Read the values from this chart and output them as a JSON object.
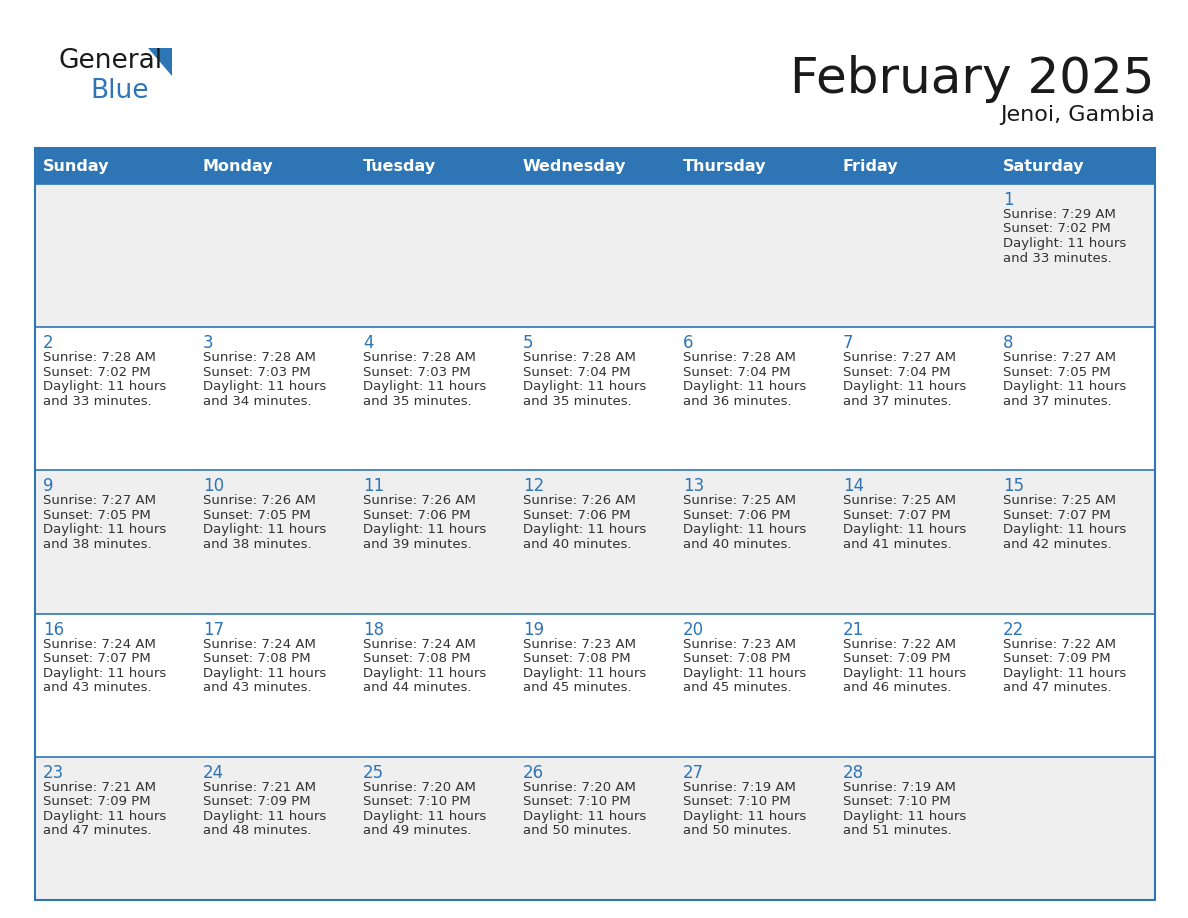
{
  "title": "February 2025",
  "subtitle": "Jenoi, Gambia",
  "days_of_week": [
    "Sunday",
    "Monday",
    "Tuesday",
    "Wednesday",
    "Thursday",
    "Friday",
    "Saturday"
  ],
  "header_bg": "#2E75B6",
  "header_text": "#FFFFFF",
  "cell_bg_odd": "#EFEFEF",
  "cell_bg_even": "#FFFFFF",
  "border_color": "#2E75B6",
  "title_color": "#1a1a1a",
  "subtitle_color": "#1a1a1a",
  "day_num_color": "#2E75B6",
  "cell_text_color": "#333333",
  "calendar_data": [
    [
      null,
      null,
      null,
      null,
      null,
      null,
      {
        "day": 1,
        "sunrise": "7:29 AM",
        "sunset": "7:02 PM",
        "daylight": "11 hours and 33 minutes."
      }
    ],
    [
      {
        "day": 2,
        "sunrise": "7:28 AM",
        "sunset": "7:02 PM",
        "daylight": "11 hours and 33 minutes."
      },
      {
        "day": 3,
        "sunrise": "7:28 AM",
        "sunset": "7:03 PM",
        "daylight": "11 hours and 34 minutes."
      },
      {
        "day": 4,
        "sunrise": "7:28 AM",
        "sunset": "7:03 PM",
        "daylight": "11 hours and 35 minutes."
      },
      {
        "day": 5,
        "sunrise": "7:28 AM",
        "sunset": "7:04 PM",
        "daylight": "11 hours and 35 minutes."
      },
      {
        "day": 6,
        "sunrise": "7:28 AM",
        "sunset": "7:04 PM",
        "daylight": "11 hours and 36 minutes."
      },
      {
        "day": 7,
        "sunrise": "7:27 AM",
        "sunset": "7:04 PM",
        "daylight": "11 hours and 37 minutes."
      },
      {
        "day": 8,
        "sunrise": "7:27 AM",
        "sunset": "7:05 PM",
        "daylight": "11 hours and 37 minutes."
      }
    ],
    [
      {
        "day": 9,
        "sunrise": "7:27 AM",
        "sunset": "7:05 PM",
        "daylight": "11 hours and 38 minutes."
      },
      {
        "day": 10,
        "sunrise": "7:26 AM",
        "sunset": "7:05 PM",
        "daylight": "11 hours and 38 minutes."
      },
      {
        "day": 11,
        "sunrise": "7:26 AM",
        "sunset": "7:06 PM",
        "daylight": "11 hours and 39 minutes."
      },
      {
        "day": 12,
        "sunrise": "7:26 AM",
        "sunset": "7:06 PM",
        "daylight": "11 hours and 40 minutes."
      },
      {
        "day": 13,
        "sunrise": "7:25 AM",
        "sunset": "7:06 PM",
        "daylight": "11 hours and 40 minutes."
      },
      {
        "day": 14,
        "sunrise": "7:25 AM",
        "sunset": "7:07 PM",
        "daylight": "11 hours and 41 minutes."
      },
      {
        "day": 15,
        "sunrise": "7:25 AM",
        "sunset": "7:07 PM",
        "daylight": "11 hours and 42 minutes."
      }
    ],
    [
      {
        "day": 16,
        "sunrise": "7:24 AM",
        "sunset": "7:07 PM",
        "daylight": "11 hours and 43 minutes."
      },
      {
        "day": 17,
        "sunrise": "7:24 AM",
        "sunset": "7:08 PM",
        "daylight": "11 hours and 43 minutes."
      },
      {
        "day": 18,
        "sunrise": "7:24 AM",
        "sunset": "7:08 PM",
        "daylight": "11 hours and 44 minutes."
      },
      {
        "day": 19,
        "sunrise": "7:23 AM",
        "sunset": "7:08 PM",
        "daylight": "11 hours and 45 minutes."
      },
      {
        "day": 20,
        "sunrise": "7:23 AM",
        "sunset": "7:08 PM",
        "daylight": "11 hours and 45 minutes."
      },
      {
        "day": 21,
        "sunrise": "7:22 AM",
        "sunset": "7:09 PM",
        "daylight": "11 hours and 46 minutes."
      },
      {
        "day": 22,
        "sunrise": "7:22 AM",
        "sunset": "7:09 PM",
        "daylight": "11 hours and 47 minutes."
      }
    ],
    [
      {
        "day": 23,
        "sunrise": "7:21 AM",
        "sunset": "7:09 PM",
        "daylight": "11 hours and 47 minutes."
      },
      {
        "day": 24,
        "sunrise": "7:21 AM",
        "sunset": "7:09 PM",
        "daylight": "11 hours and 48 minutes."
      },
      {
        "day": 25,
        "sunrise": "7:20 AM",
        "sunset": "7:10 PM",
        "daylight": "11 hours and 49 minutes."
      },
      {
        "day": 26,
        "sunrise": "7:20 AM",
        "sunset": "7:10 PM",
        "daylight": "11 hours and 50 minutes."
      },
      {
        "day": 27,
        "sunrise": "7:19 AM",
        "sunset": "7:10 PM",
        "daylight": "11 hours and 50 minutes."
      },
      {
        "day": 28,
        "sunrise": "7:19 AM",
        "sunset": "7:10 PM",
        "daylight": "11 hours and 51 minutes."
      },
      null
    ]
  ]
}
